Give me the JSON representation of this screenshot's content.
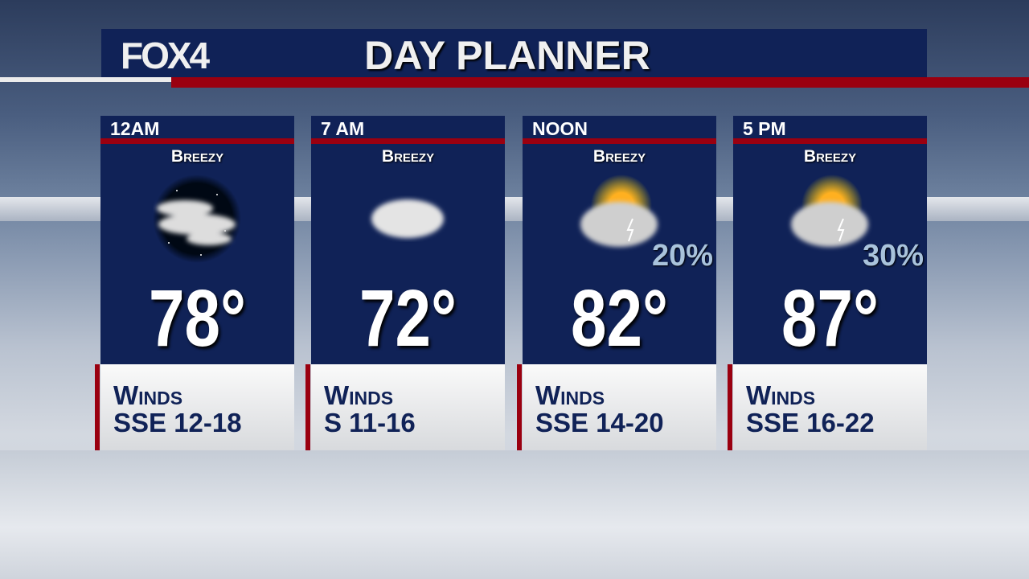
{
  "header": {
    "logo": "FOX4",
    "title": "DAY PLANNER"
  },
  "colors": {
    "navy": "#102257",
    "red": "#9a0010"
  },
  "periods": [
    {
      "time": "12AM",
      "condition": "Breezy",
      "icon": "night-cloudy-icon",
      "temp": "78°",
      "precip": "",
      "winds_label": "Winds",
      "winds": "SSE 12-18"
    },
    {
      "time": "7 AM",
      "condition": "Breezy",
      "icon": "cloudy-icon",
      "temp": "72°",
      "precip": "",
      "winds_label": "Winds",
      "winds": "S 11-16"
    },
    {
      "time": "NOON",
      "condition": "Breezy",
      "icon": "partly-sunny-storm-icon",
      "temp": "82°",
      "precip": "20%",
      "winds_label": "Winds",
      "winds": "SSE 14-20"
    },
    {
      "time": "5 PM",
      "condition": "Breezy",
      "icon": "partly-sunny-storm-icon",
      "temp": "87°",
      "precip": "30%",
      "winds_label": "Winds",
      "winds": "SSE 16-22"
    }
  ]
}
